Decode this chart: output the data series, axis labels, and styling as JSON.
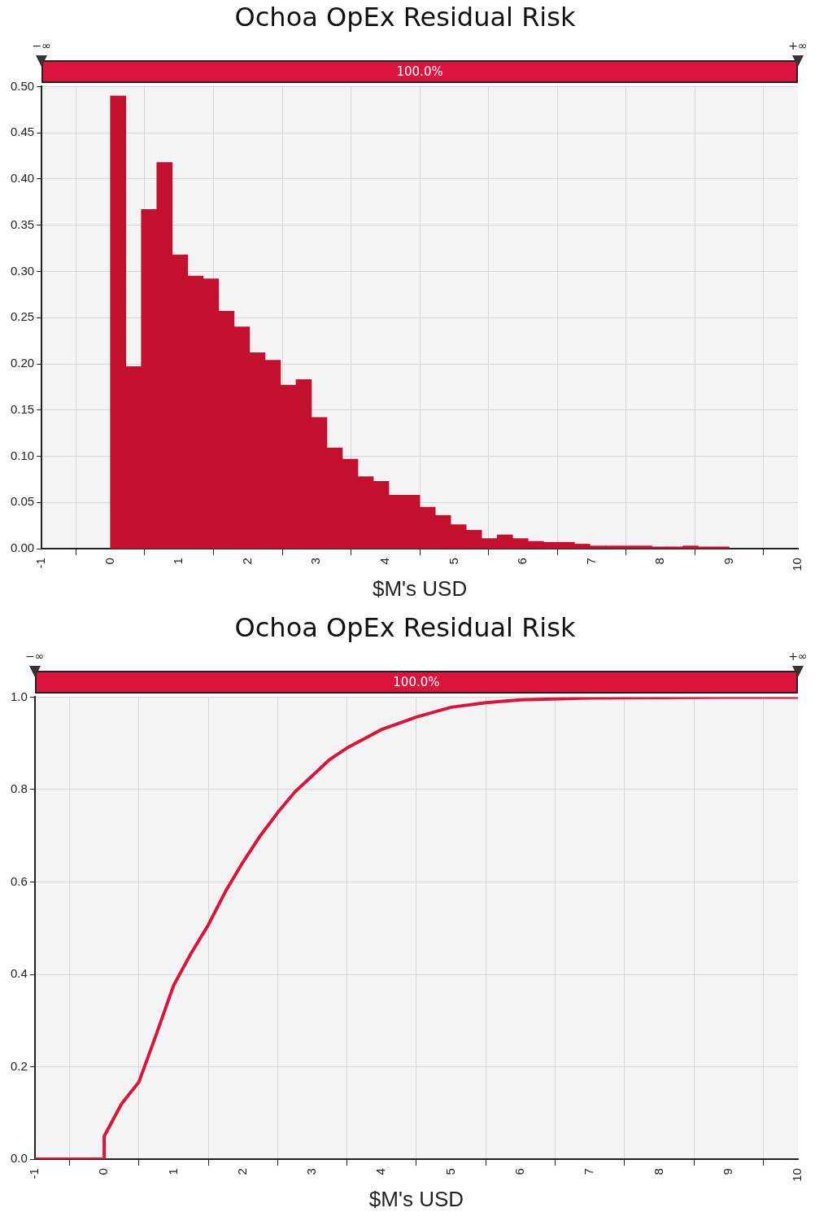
{
  "chart_data": [
    {
      "type": "histogram",
      "title": "Ochoa OpEx Residual Risk",
      "xlabel": "$M's USD",
      "color": "#c4102f",
      "bins": [
        0,
        0.225,
        0.45,
        0.675,
        0.9,
        1.125,
        1.35,
        1.575,
        1.8,
        2.025,
        2.25,
        2.475,
        2.7,
        2.925,
        3.15,
        3.375,
        3.6,
        3.825,
        4.05,
        4.275,
        4.5,
        4.725,
        4.95,
        5.175,
        5.4,
        5.625,
        5.85,
        6.075,
        6.3,
        6.525,
        6.75,
        6.975,
        7.2,
        7.425,
        7.65,
        7.875,
        8.1,
        8.325,
        8.55,
        8.775,
        9
      ],
      "values": [
        0.49,
        0.197,
        0.367,
        0.418,
        0.318,
        0.295,
        0.292,
        0.257,
        0.24,
        0.212,
        0.204,
        0.177,
        0.183,
        0.142,
        0.109,
        0.097,
        0.078,
        0.073,
        0.058,
        0.058,
        0.045,
        0.036,
        0.026,
        0.02,
        0.011,
        0.015,
        0.011,
        0.008,
        0.007,
        0.007,
        0.005,
        0.003,
        0.003,
        0.003,
        0.003,
        0.002,
        0.002,
        0.003,
        0.002,
        0.002
      ],
      "xlim": [
        -1,
        10
      ],
      "xticks": [
        -1,
        0,
        1,
        2,
        3,
        4,
        5,
        6,
        7,
        8,
        9,
        10
      ],
      "ylim": [
        0,
        0.5
      ],
      "yticks": [
        {
          "value": 0,
          "label": "0.00"
        },
        {
          "value": 0.05,
          "label": "0.05"
        },
        {
          "value": 0.1,
          "label": "0.10"
        },
        {
          "value": 0.15,
          "label": "0.15"
        },
        {
          "value": 0.2,
          "label": "0.20"
        },
        {
          "value": 0.25,
          "label": "0.25"
        },
        {
          "value": 0.3,
          "label": "0.30"
        },
        {
          "value": 0.35,
          "label": "0.35"
        },
        {
          "value": 0.4,
          "label": "0.40"
        },
        {
          "value": 0.45,
          "label": "0.45"
        },
        {
          "value": 0.5,
          "label": "0.50"
        }
      ],
      "grid": true,
      "annotations": [
        "−∞",
        "+∞",
        "100.0%"
      ]
    },
    {
      "type": "line",
      "title": "Ochoa OpEx Residual Risk",
      "xlabel": "$M's USD",
      "color": "#dc143c",
      "marker": "none",
      "line_style": "solid",
      "x": [
        -1,
        0,
        0,
        0.25,
        0.5,
        0.75,
        1,
        1.25,
        1.5,
        1.75,
        2,
        2.25,
        2.5,
        2.75,
        3,
        3.25,
        3.5,
        3.75,
        4,
        4.5,
        5,
        5.5,
        6,
        7,
        8,
        9,
        10
      ],
      "values": [
        0,
        0,
        0.05,
        0.12,
        0.167,
        0.27,
        0.376,
        0.445,
        0.507,
        0.58,
        0.643,
        0.7,
        0.75,
        0.795,
        0.83,
        0.865,
        0.89,
        0.91,
        0.93,
        0.957,
        0.978,
        0.988,
        0.994,
        0.998,
        0.999,
        1,
        1
      ],
      "xlim": [
        -1,
        10
      ],
      "xticks": [
        -1,
        0,
        1,
        2,
        3,
        4,
        5,
        6,
        7,
        8,
        9,
        10
      ],
      "ylim": [
        0,
        1
      ],
      "yticks": [
        {
          "value": 0,
          "label": "0.0"
        },
        {
          "value": 0.2,
          "label": "0.2"
        },
        {
          "value": 0.4,
          "label": "0.4"
        },
        {
          "value": 0.6,
          "label": "0.6"
        },
        {
          "value": 0.8,
          "label": "0.8"
        },
        {
          "value": 1,
          "label": "1.0"
        }
      ],
      "grid": true,
      "annotations": [
        "−∞",
        "+∞",
        "100.0%"
      ]
    }
  ]
}
